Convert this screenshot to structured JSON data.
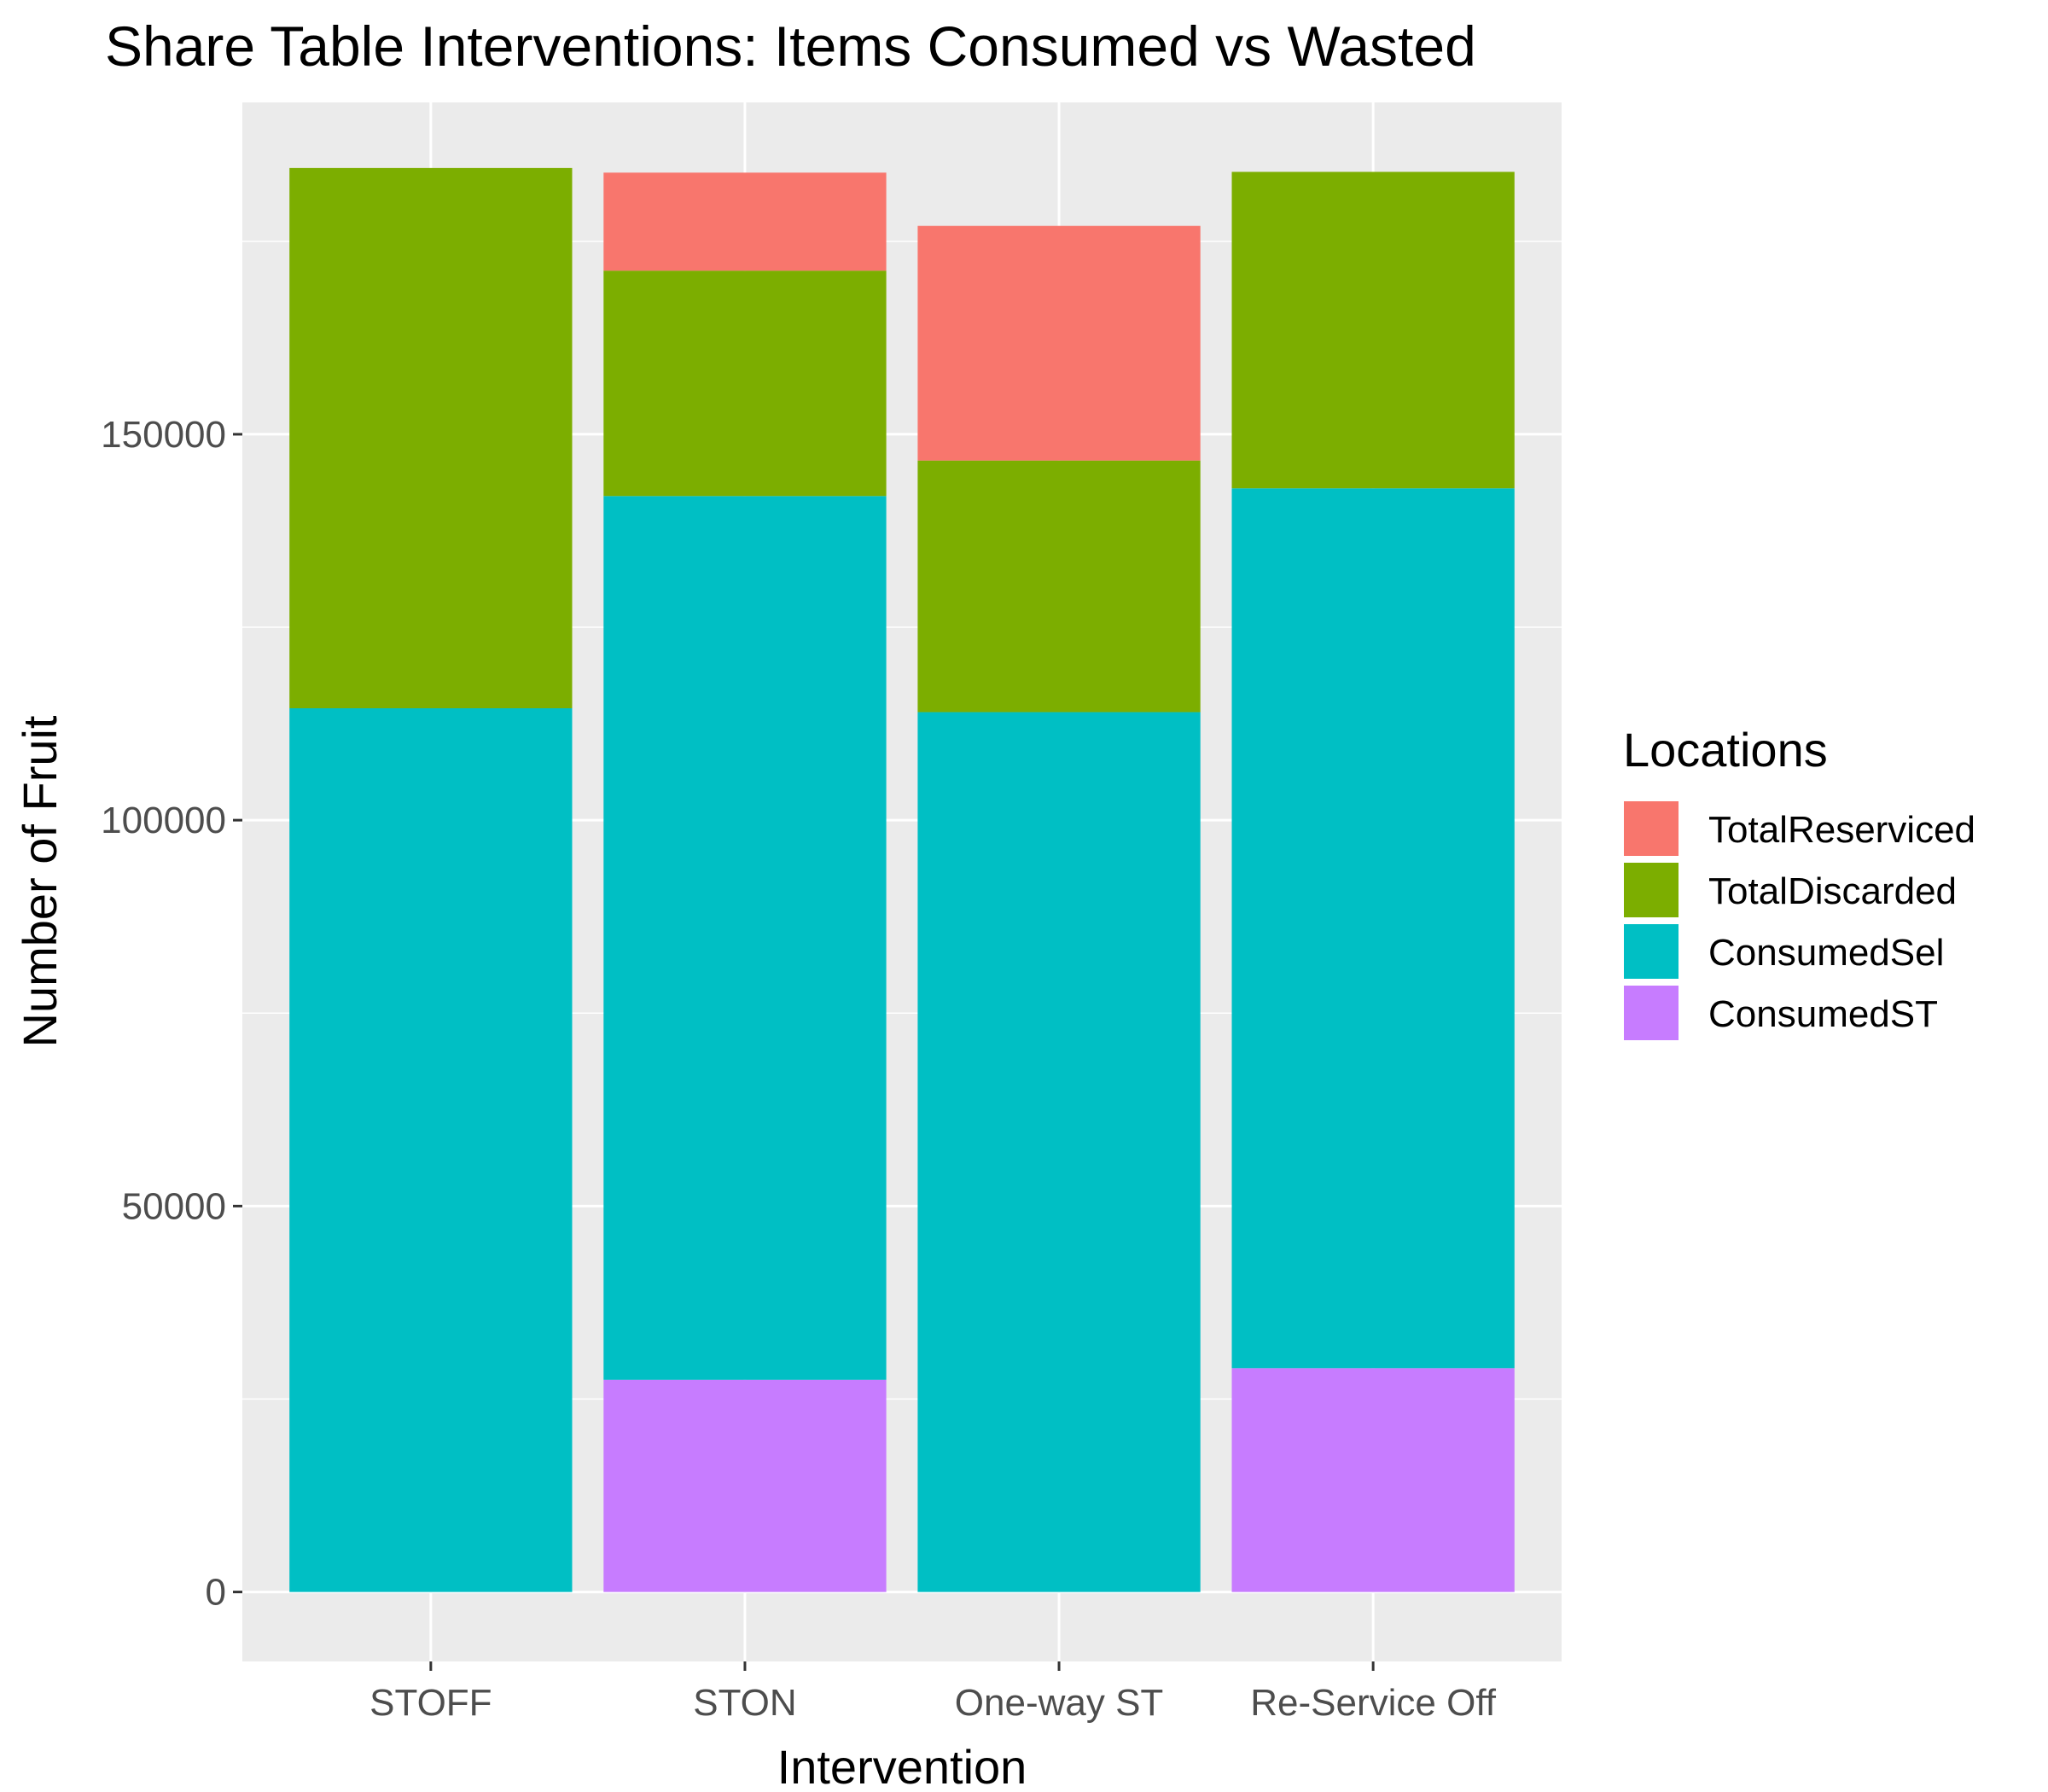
{
  "chart_data": {
    "type": "bar",
    "stacked": true,
    "title": "Share Table Interventions: Items Consumed vs Wasted",
    "xlabel": "Intervention",
    "ylabel": "Number of Fruit",
    "categories": [
      "STOFF",
      "STON",
      "One-way ST",
      "Re-Service Off"
    ],
    "series": [
      {
        "name": "ConsumedST",
        "color": "#C77CFF",
        "values": [
          0,
          27500,
          0,
          29000
        ]
      },
      {
        "name": "ConsumedSel",
        "color": "#00BFC4",
        "values": [
          114500,
          114500,
          114000,
          114000
        ]
      },
      {
        "name": "TotalDiscarded",
        "color": "#7CAE00",
        "values": [
          70000,
          29200,
          32600,
          41000
        ]
      },
      {
        "name": "TotalReserviced",
        "color": "#F8766D",
        "values": [
          0,
          12700,
          30400,
          0
        ]
      }
    ],
    "legend": {
      "title": "Locations",
      "placement": "right",
      "order": [
        "TotalReserviced",
        "TotalDiscarded",
        "ConsumedSel",
        "ConsumedST"
      ]
    },
    "y_ticks": [
      0,
      50000,
      100000,
      150000
    ],
    "y_tick_labels": [
      "0",
      "50000",
      "100000",
      "150000"
    ],
    "ylim": [
      -9000,
      193000
    ],
    "grid": true,
    "panel_background": "#EBEBEB",
    "grid_color": "#FFFFFF"
  }
}
